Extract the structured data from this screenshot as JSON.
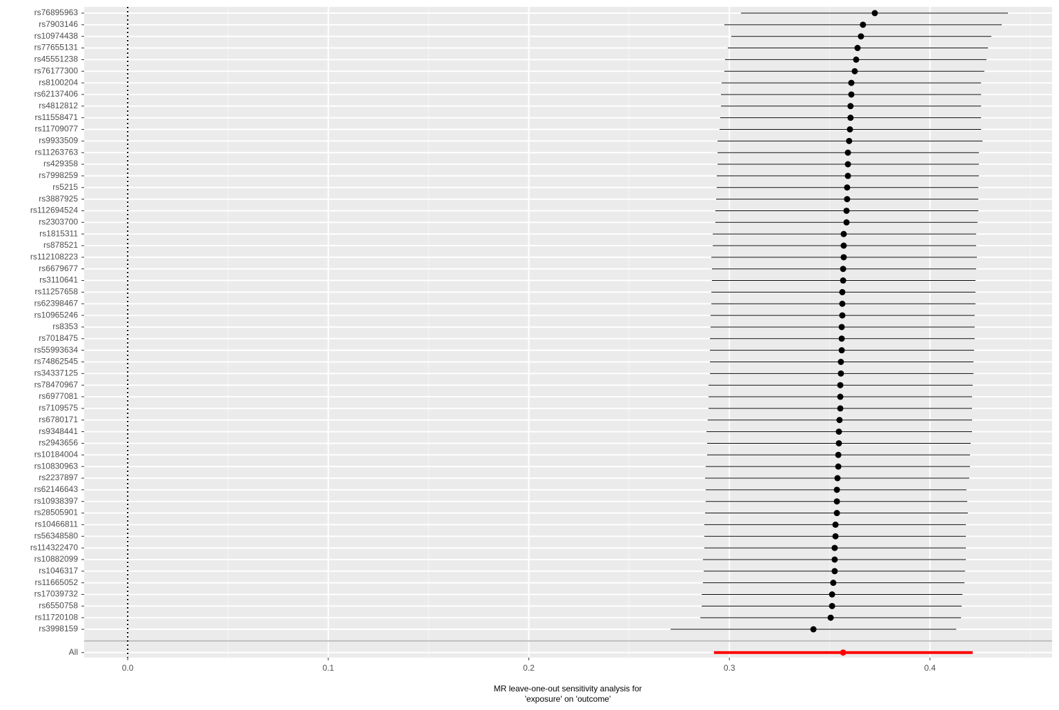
{
  "chart_data": {
    "type": "forest",
    "xlabel": [
      "MR leave-one-out sensitivity analysis for",
      "'exposure' on 'outcome'"
    ],
    "categories": [
      "rs76895963",
      "rs7903146",
      "rs10974438",
      "rs77655131",
      "rs45551238",
      "rs76177300",
      "rs8100204",
      "rs62137406",
      "rs4812812",
      "rs11558471",
      "rs11709077",
      "rs9933509",
      "rs11263763",
      "rs429358",
      "rs7998259",
      "rs5215",
      "rs3887925",
      "rs112694524",
      "rs2303700",
      "rs1815311",
      "rs878521",
      "rs112108223",
      "rs6679677",
      "rs3110641",
      "rs11257658",
      "rs62398467",
      "rs10965246",
      "rs8353",
      "rs7018475",
      "rs55993634",
      "rs74862545",
      "rs34337125",
      "rs78470967",
      "rs6977081",
      "rs7109575",
      "rs6780171",
      "rs9348441",
      "rs2943656",
      "rs10184004",
      "rs10830963",
      "rs2237897",
      "rs62146643",
      "rs10938397",
      "rs28505901",
      "rs10466811",
      "rs56348580",
      "rs114322470",
      "rs10882099",
      "rs1046317",
      "rs11665052",
      "rs17039732",
      "rs6550758",
      "rs11720108",
      "rs3998159"
    ],
    "values": [
      0.3725,
      0.3666,
      0.3656,
      0.3639,
      0.3632,
      0.3625,
      0.3608,
      0.3608,
      0.3604,
      0.3604,
      0.3601,
      0.3597,
      0.3591,
      0.3591,
      0.3591,
      0.3587,
      0.3587,
      0.3584,
      0.3584,
      0.357,
      0.357,
      0.357,
      0.3567,
      0.3567,
      0.3563,
      0.3563,
      0.3563,
      0.356,
      0.356,
      0.356,
      0.3556,
      0.3556,
      0.3553,
      0.3553,
      0.3553,
      0.3549,
      0.3546,
      0.3546,
      0.3543,
      0.3543,
      0.3539,
      0.3536,
      0.3536,
      0.3536,
      0.3529,
      0.3529,
      0.3525,
      0.3525,
      0.3525,
      0.3518,
      0.3512,
      0.3512,
      0.3505,
      0.3419
    ],
    "lower": [
      0.3058,
      0.2975,
      0.3009,
      0.2992,
      0.2978,
      0.2975,
      0.2961,
      0.2958,
      0.2958,
      0.2954,
      0.2951,
      0.2941,
      0.2941,
      0.2941,
      0.2937,
      0.2937,
      0.2934,
      0.293,
      0.293,
      0.2917,
      0.2917,
      0.291,
      0.2913,
      0.2913,
      0.291,
      0.291,
      0.2906,
      0.2906,
      0.2903,
      0.2903,
      0.2903,
      0.2903,
      0.2896,
      0.2896,
      0.2896,
      0.2892,
      0.2886,
      0.2889,
      0.2889,
      0.2882,
      0.2879,
      0.2882,
      0.2882,
      0.2879,
      0.2875,
      0.2875,
      0.2875,
      0.2868,
      0.2872,
      0.2868,
      0.2862,
      0.2862,
      0.2855,
      0.2707
    ],
    "upper": [
      0.4389,
      0.4358,
      0.4306,
      0.4289,
      0.4282,
      0.4271,
      0.4255,
      0.4255,
      0.4255,
      0.4255,
      0.4255,
      0.4262,
      0.4244,
      0.4244,
      0.4244,
      0.4241,
      0.4241,
      0.4241,
      0.4237,
      0.423,
      0.423,
      0.4234,
      0.423,
      0.4227,
      0.4227,
      0.4227,
      0.4223,
      0.4223,
      0.4223,
      0.422,
      0.4217,
      0.4217,
      0.4213,
      0.421,
      0.421,
      0.421,
      0.421,
      0.4203,
      0.42,
      0.42,
      0.4196,
      0.4182,
      0.4186,
      0.4189,
      0.4179,
      0.4179,
      0.4179,
      0.4179,
      0.4175,
      0.4172,
      0.4162,
      0.4158,
      0.4155,
      0.4131
    ],
    "color": "#000000",
    "summary": {
      "label": "All",
      "value": 0.3567,
      "lower": 0.2923,
      "upper": 0.4213,
      "color": "#ff0000"
    },
    "reference_x": 0,
    "xlim": [
      -0.0217,
      0.4609
    ],
    "xticks": [
      {
        "value": 0,
        "label": "0.0"
      },
      0.1,
      0.2,
      0.3,
      0.4
    ],
    "grid": true
  }
}
